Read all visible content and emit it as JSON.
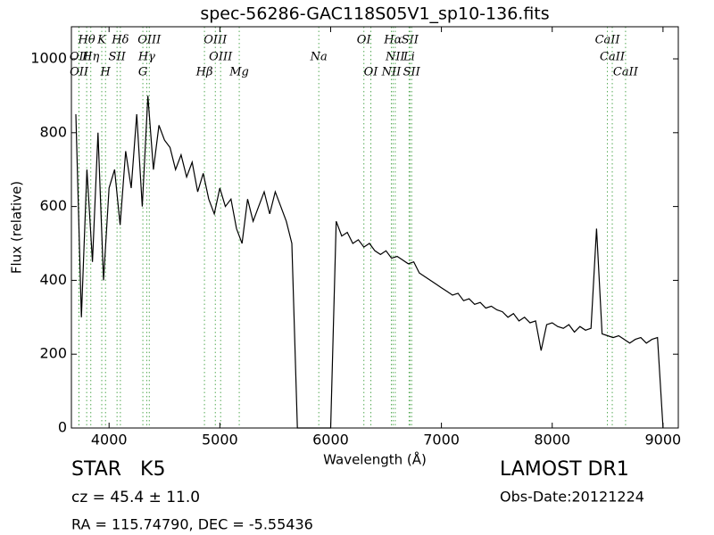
{
  "chart_data": {
    "type": "line",
    "title": "spec-56286-GAC118S05V1_sp10-136.fits",
    "xlabel": "Wavelength (Å)",
    "ylabel": "Flux (relative)",
    "xlim": [
      3660,
      9138
    ],
    "ylim": [
      0,
      1087
    ],
    "xticks": [
      4000,
      5000,
      6000,
      7000,
      8000,
      9000
    ],
    "yticks": [
      0,
      200,
      400,
      600,
      800,
      1000
    ],
    "series": [
      {
        "color": "#000000",
        "x": [
          3700,
          3750,
          3800,
          3850,
          3900,
          3950,
          4000,
          4050,
          4100,
          4150,
          4200,
          4250,
          4300,
          4350,
          4400,
          4450,
          4500,
          4550,
          4600,
          4650,
          4700,
          4750,
          4800,
          4850,
          4900,
          4950,
          5000,
          5050,
          5100,
          5150,
          5200,
          5250,
          5300,
          5350,
          5400,
          5450,
          5500,
          5550,
          5600,
          5650,
          5700,
          5750,
          5800,
          5850,
          5900,
          5950,
          6000,
          6050,
          6100,
          6150,
          6200,
          6250,
          6300,
          6350,
          6400,
          6450,
          6500,
          6550,
          6600,
          6650,
          6700,
          6750,
          6800,
          6850,
          6900,
          6950,
          7000,
          7050,
          7100,
          7150,
          7200,
          7250,
          7300,
          7350,
          7400,
          7450,
          7500,
          7550,
          7600,
          7650,
          7700,
          7750,
          7800,
          7850,
          7900,
          7950,
          8000,
          8050,
          8100,
          8150,
          8200,
          8250,
          8300,
          8350,
          8400,
          8450,
          8500,
          8550,
          8600,
          8650,
          8700,
          8750,
          8800,
          8850,
          8900,
          8950,
          9000
        ],
        "values": [
          850,
          300,
          700,
          450,
          800,
          400,
          650,
          700,
          550,
          750,
          650,
          850,
          600,
          900,
          700,
          820,
          780,
          760,
          700,
          740,
          680,
          720,
          640,
          690,
          620,
          580,
          650,
          600,
          620,
          540,
          500,
          620,
          560,
          600,
          640,
          580,
          640,
          600,
          560,
          500,
          0,
          0,
          0,
          0,
          0,
          0,
          0,
          560,
          520,
          530,
          500,
          510,
          490,
          500,
          480,
          470,
          480,
          460,
          465,
          455,
          445,
          450,
          420,
          410,
          400,
          390,
          380,
          370,
          360,
          365,
          345,
          350,
          335,
          340,
          325,
          330,
          320,
          315,
          300,
          310,
          290,
          300,
          285,
          290,
          210,
          280,
          285,
          275,
          270,
          280,
          260,
          275,
          265,
          270,
          540,
          255,
          250,
          245,
          250,
          240,
          230,
          240,
          245,
          230,
          240,
          245,
          0
        ]
      }
    ],
    "line_color": "#55aa55",
    "line_rows": [
      [
        {
          "label": "Hθ",
          "wavelength": 3798
        },
        {
          "label": "K",
          "wavelength": 3934
        },
        {
          "label": "Hδ",
          "wavelength": 4102
        },
        {
          "label": "OIII",
          "wavelength": 4363
        },
        {
          "label": "OIII",
          "wavelength": 4959
        },
        {
          "label": "OI",
          "wavelength": 6300
        },
        {
          "label": "Hα",
          "wavelength": 6563
        },
        {
          "label": "SII",
          "wavelength": 6716
        },
        {
          "label": "CaII",
          "wavelength": 8498
        }
      ],
      [
        {
          "label": "OII",
          "wavelength": 3727
        },
        {
          "label": "Hη",
          "wavelength": 3835
        },
        {
          "label": "SII",
          "wavelength": 4072
        },
        {
          "label": "Hγ",
          "wavelength": 4340
        },
        {
          "label": "OIII",
          "wavelength": 5007
        },
        {
          "label": "Na",
          "wavelength": 5893
        },
        {
          "label": "NII",
          "wavelength": 6583
        },
        {
          "label": "Li",
          "wavelength": 6708
        },
        {
          "label": "CaII",
          "wavelength": 8542
        }
      ],
      [
        {
          "label": "OII",
          "wavelength": 3729
        },
        {
          "label": "H",
          "wavelength": 3968
        },
        {
          "label": "G",
          "wavelength": 4305
        },
        {
          "label": "Hβ",
          "wavelength": 4861
        },
        {
          "label": "Mg",
          "wavelength": 5175
        },
        {
          "label": "OI",
          "wavelength": 6363
        },
        {
          "label": "NII",
          "wavelength": 6548
        },
        {
          "label": "SII",
          "wavelength": 6731
        },
        {
          "label": "CaII",
          "wavelength": 8662
        }
      ]
    ],
    "class_text": "STAR   K5",
    "cz_text": "cz = 45.4 ± 11.0",
    "coord_text": "RA = 115.74790, DEC = -5.55436",
    "survey_text": "LAMOST DR1",
    "date_text": "Obs-Date:20121224"
  }
}
